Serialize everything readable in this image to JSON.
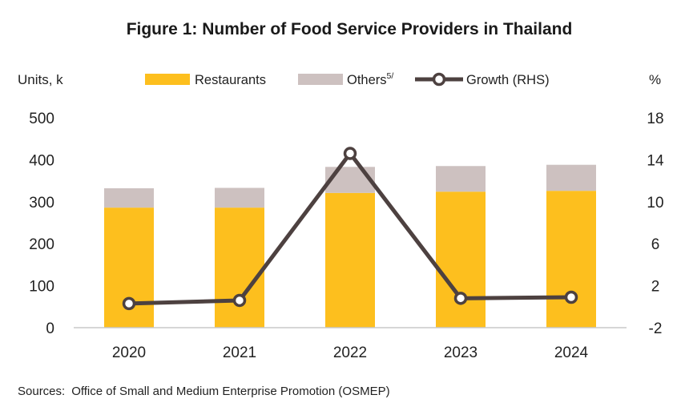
{
  "chart_data": {
    "type": "bar",
    "title": "Figure 1: Number of Food Service Providers in Thailand",
    "ylabel_left": "Units, k",
    "ylabel_right": "%",
    "categories": [
      "2020",
      "2021",
      "2022",
      "2023",
      "2024"
    ],
    "ylim_left": [
      0,
      500
    ],
    "yticks_left": [
      "0",
      "100",
      "200",
      "300",
      "400",
      "500"
    ],
    "ylim_right": [
      -2,
      18
    ],
    "yticks_right": [
      "-2",
      "2",
      "6",
      "10",
      "14",
      "18"
    ],
    "stacked": true,
    "series": [
      {
        "name": "Restaurants",
        "type": "bar",
        "axis": "left",
        "color": "#FDBF1E",
        "values": [
          286,
          286,
          321,
          324,
          326
        ]
      },
      {
        "name": "Others",
        "name_sup": "5/",
        "type": "bar",
        "axis": "left",
        "color": "#CDC1C0",
        "values": [
          46,
          47,
          62,
          61,
          62
        ]
      },
      {
        "name": "Growth (RHS)",
        "type": "line",
        "axis": "right",
        "color": "#4D4140",
        "values": [
          0.3,
          0.6,
          14.6,
          0.8,
          0.9
        ]
      }
    ],
    "legend_position": "top",
    "grid": false
  },
  "footer": {
    "source_label": "Sources:",
    "source_text": "Office of Small and Medium Enterprise Promotion (OSMEP)"
  }
}
